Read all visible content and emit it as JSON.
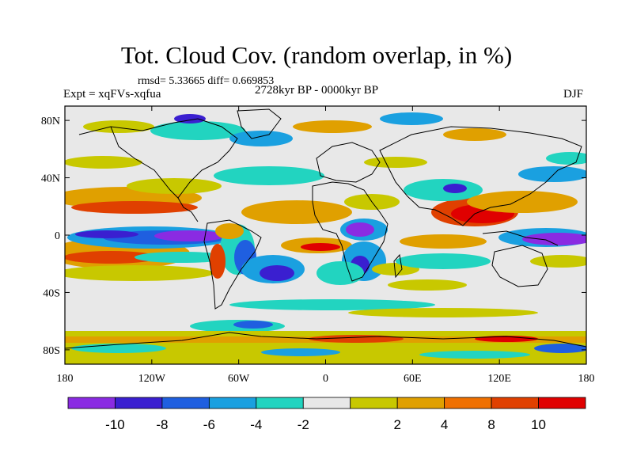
{
  "title": "Tot. Cloud Cov. (random overlap, in %)",
  "stats": "rmsd= 5.33665 diff= 0.669853",
  "experiment": "Expt = xqFVs-xqfua",
  "period": "2728kyr BP - 0000kyr BP",
  "season": "DJF",
  "map": {
    "lon_range": [
      -180,
      180
    ],
    "lat_range": [
      -90,
      90
    ],
    "background": "#e8e8e8",
    "coastline_color": "#000000",
    "x_ticks": [
      {
        "value": -180,
        "label": "180"
      },
      {
        "value": -120,
        "label": "120W"
      },
      {
        "value": -60,
        "label": "60W"
      },
      {
        "value": 0,
        "label": "0"
      },
      {
        "value": 60,
        "label": "60E"
      },
      {
        "value": 120,
        "label": "120E"
      },
      {
        "value": 180,
        "label": "180"
      }
    ],
    "y_ticks": [
      {
        "value": 80,
        "label": "80N"
      },
      {
        "value": 40,
        "label": "40N"
      },
      {
        "value": 0,
        "label": "0"
      },
      {
        "value": -40,
        "label": "40S"
      },
      {
        "value": -80,
        "label": "80S"
      }
    ]
  },
  "colorbar": {
    "colors": [
      "#8a2be2",
      "#3a1fd0",
      "#1f5fe0",
      "#1aa0e0",
      "#22d4c0",
      "#e8e8e8",
      "#c8c800",
      "#e0a000",
      "#f07000",
      "#e04000",
      "#e00000"
    ],
    "labels": [
      "-10",
      "-8",
      "-6",
      "-4",
      "-2",
      "2",
      "4",
      "8",
      "10"
    ]
  }
}
